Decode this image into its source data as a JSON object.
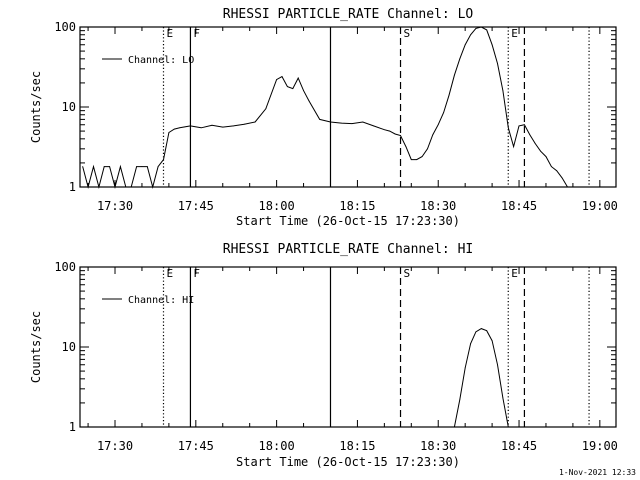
{
  "footer": "1-Nov-2021 12:33",
  "chart_data": [
    {
      "type": "line",
      "title": "RHESSI PARTICLE_RATE Channel: LO",
      "xlabel": "Start Time (26-Oct-15 17:23:30)",
      "ylabel": "Counts/sec",
      "yscale": "log",
      "ylim": [
        1,
        100
      ],
      "xlim": [
        "17:23:30",
        "19:03:00"
      ],
      "xticks": [
        "17:30",
        "17:45",
        "18:00",
        "18:15",
        "18:30",
        "18:45",
        "19:00"
      ],
      "yticks": [
        "1",
        "10",
        "100"
      ],
      "legend": "top-left",
      "series": [
        {
          "name": "Channel: LO",
          "x": [
            "17:24",
            "17:25",
            "17:26",
            "17:27",
            "17:28",
            "17:29",
            "17:30",
            "17:31",
            "17:32",
            "17:33",
            "17:34",
            "17:35",
            "17:36",
            "17:37",
            "17:38",
            "17:39",
            "17:40",
            "17:41",
            "17:42",
            "17:44",
            "17:46",
            "17:48",
            "17:50",
            "17:52",
            "17:54",
            "17:56",
            "17:58",
            "18:00",
            "18:01",
            "18:02",
            "18:03",
            "18:04",
            "18:05",
            "18:06",
            "18:08",
            "18:10",
            "18:12",
            "18:14",
            "18:16",
            "18:18",
            "18:20",
            "18:21",
            "18:22",
            "18:23",
            "18:24",
            "18:25",
            "18:26",
            "18:27",
            "18:28",
            "18:29",
            "18:30",
            "18:31",
            "18:32",
            "18:33",
            "18:34",
            "18:35",
            "18:36",
            "18:37",
            "18:38",
            "18:39",
            "18:40",
            "18:41",
            "18:42",
            "18:43",
            "18:44",
            "18:45",
            "18:46",
            "18:47",
            "18:48",
            "18:49",
            "18:50",
            "18:51",
            "18:52",
            "18:53",
            "18:54"
          ],
          "y": [
            1.8,
            1,
            1.8,
            1,
            1.8,
            1.8,
            1,
            1.8,
            1,
            1,
            1.8,
            1.8,
            1.8,
            1,
            1.8,
            2.2,
            4.8,
            5.3,
            5.5,
            5.8,
            5.5,
            5.9,
            5.6,
            5.8,
            6.1,
            6.5,
            9.5,
            22,
            24,
            18,
            17,
            23,
            16,
            12,
            7,
            6.5,
            6.3,
            6.2,
            6.5,
            5.8,
            5.2,
            5.0,
            4.6,
            4.4,
            3.2,
            2.2,
            2.2,
            2.4,
            3.0,
            4.5,
            6.0,
            8.5,
            14,
            25,
            40,
            60,
            80,
            96,
            100,
            92,
            60,
            35,
            16,
            5.5,
            3.2,
            5.8,
            6,
            4.5,
            3.5,
            2.8,
            2.4,
            1.8,
            1.6,
            1.3,
            1
          ]
        }
      ],
      "markers": [
        {
          "time": "17:39:00",
          "style": "dotted",
          "label": "E"
        },
        {
          "time": "17:44:00",
          "style": "solid",
          "label": "F"
        },
        {
          "time": "18:10:00",
          "style": "solid",
          "label": ""
        },
        {
          "time": "18:23:00",
          "style": "dashed",
          "label": "S"
        },
        {
          "time": "18:43:00",
          "style": "dotted",
          "label": "E"
        },
        {
          "time": "18:46:00",
          "style": "dashed",
          "label": ""
        },
        {
          "time": "18:58:00",
          "style": "dotted",
          "label": ""
        }
      ]
    },
    {
      "type": "line",
      "title": "RHESSI PARTICLE_RATE Channel: HI",
      "xlabel": "Start Time (26-Oct-15 17:23:30)",
      "ylabel": "Counts/sec",
      "yscale": "log",
      "ylim": [
        1,
        100
      ],
      "xlim": [
        "17:23:30",
        "19:03:00"
      ],
      "xticks": [
        "17:30",
        "17:45",
        "18:00",
        "18:15",
        "18:30",
        "18:45",
        "19:00"
      ],
      "yticks": [
        "1",
        "10",
        "100"
      ],
      "legend": "top-left",
      "series": [
        {
          "name": "Channel: HI",
          "x": [
            "18:33",
            "18:34",
            "18:35",
            "18:36",
            "18:37",
            "18:38",
            "18:39",
            "18:40",
            "18:41",
            "18:42",
            "18:43"
          ],
          "y": [
            1,
            2.2,
            5.5,
            11,
            15.5,
            17,
            16,
            12,
            6,
            2.3,
            1
          ]
        }
      ],
      "markers": [
        {
          "time": "17:39:00",
          "style": "dotted",
          "label": "E"
        },
        {
          "time": "17:44:00",
          "style": "solid",
          "label": "F"
        },
        {
          "time": "18:10:00",
          "style": "solid",
          "label": ""
        },
        {
          "time": "18:23:00",
          "style": "dashed",
          "label": "S"
        },
        {
          "time": "18:43:00",
          "style": "dotted",
          "label": "E"
        },
        {
          "time": "18:46:00",
          "style": "dashed",
          "label": ""
        },
        {
          "time": "18:58:00",
          "style": "dotted",
          "label": ""
        }
      ]
    }
  ]
}
